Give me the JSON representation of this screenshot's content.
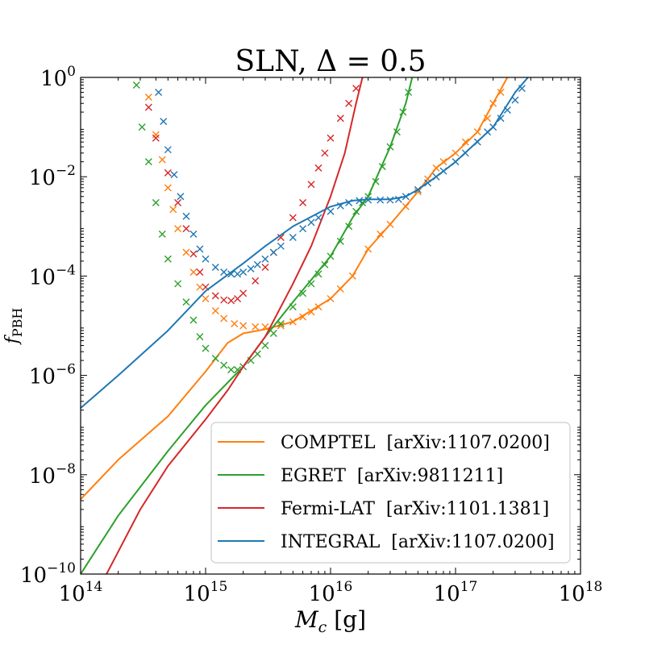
{
  "chart_data": {
    "type": "line",
    "title_text": "SLN, ",
    "title_math": "Δ = 0.5",
    "xlabel_main": "M",
    "xlabel_sub": "c",
    "xlabel_unit": " [g]",
    "ylabel_main": "f",
    "ylabel_sub": "PBH",
    "xscale": "log",
    "yscale": "log",
    "xlim": [
      100000000000000.0,
      1e+18
    ],
    "ylim": [
      1e-10,
      1
    ],
    "xticks": [
      {
        "base": "10",
        "exp": "14",
        "value": 100000000000000.0
      },
      {
        "base": "10",
        "exp": "15",
        "value": 1000000000000000.0
      },
      {
        "base": "10",
        "exp": "16",
        "value": 1e+16
      },
      {
        "base": "10",
        "exp": "17",
        "value": 1e+17
      },
      {
        "base": "10",
        "exp": "18",
        "value": 1e+18
      }
    ],
    "yticks": [
      {
        "base": "10",
        "exp": "0",
        "value": 1
      },
      {
        "base": "10",
        "exp": "−2",
        "value": 0.01
      },
      {
        "base": "10",
        "exp": "−4",
        "value": 0.0001
      },
      {
        "base": "10",
        "exp": "−6",
        "value": 1e-06
      },
      {
        "base": "10",
        "exp": "−8",
        "value": 1e-08
      },
      {
        "base": "10",
        "exp": "−10",
        "value": 1e-10
      }
    ],
    "legend_position": "lower-right",
    "series": [
      {
        "name": "COMPTEL  [arXiv:1107.0200]",
        "color": "#ff7f0e",
        "line": [
          [
            100000000000000.0,
            3.2e-09
          ],
          [
            200000000000000.0,
            2e-08
          ],
          [
            500000000000000.0,
            1.5e-07
          ],
          [
            1000000000000000.0,
            1.2e-06
          ],
          [
            1500000000000000.0,
            4.5e-06
          ],
          [
            2000000000000000.0,
            7e-06
          ],
          [
            3000000000000000.0,
            8.5e-06
          ],
          [
            5000000000000000.0,
            1.2e-05
          ],
          [
            1e+16,
            3.5e-05
          ],
          [
            1.5e+16,
            0.0001
          ],
          [
            2e+16,
            0.00035
          ],
          [
            3e+16,
            0.0011
          ],
          [
            5e+16,
            0.005
          ],
          [
            7e+16,
            0.015
          ],
          [
            1e+17,
            0.03
          ],
          [
            1.5e+17,
            0.08
          ],
          [
            2e+17,
            0.3
          ],
          [
            2.6e+17,
            1
          ]
        ],
        "markers": [
          [
            350000000000000.0,
            0.4
          ],
          [
            400000000000000.0,
            0.07
          ],
          [
            450000000000000.0,
            0.022
          ],
          [
            500000000000000.0,
            0.006
          ],
          [
            550000000000000.0,
            0.0022
          ],
          [
            600000000000000.0,
            0.0009
          ],
          [
            700000000000000.0,
            0.0003
          ],
          [
            800000000000000.0,
            0.00012
          ],
          [
            900000000000000.0,
            6e-05
          ],
          [
            1000000000000000.0,
            3.5e-05
          ],
          [
            1200000000000000.0,
            2e-05
          ],
          [
            1400000000000000.0,
            1.4e-05
          ],
          [
            1700000000000000.0,
            1.1e-05
          ],
          [
            2000000000000000.0,
            1e-05
          ],
          [
            2500000000000000.0,
            9.5e-06
          ],
          [
            3000000000000000.0,
            9.5e-06
          ],
          [
            4000000000000000.0,
            1e-05
          ],
          [
            5000000000000000.0,
            1.2e-05
          ],
          [
            6000000000000000.0,
            1.5e-05
          ],
          [
            7000000000000000.0,
            1.9e-05
          ],
          [
            8000000000000000.0,
            2.4e-05
          ],
          [
            1e+16,
            3.5e-05
          ],
          [
            1.2e+16,
            5.5e-05
          ],
          [
            1.5e+16,
            0.0001
          ],
          [
            2e+16,
            0.00035
          ],
          [
            2.5e+16,
            0.0007
          ],
          [
            3e+16,
            0.0011
          ],
          [
            4e+16,
            0.0025
          ],
          [
            5e+16,
            0.005
          ],
          [
            6e+16,
            0.009
          ],
          [
            7e+16,
            0.015
          ],
          [
            8e+16,
            0.02
          ],
          [
            1e+17,
            0.03
          ],
          [
            1.2e+17,
            0.05
          ],
          [
            1.5e+17,
            0.08
          ],
          [
            1.8e+17,
            0.15
          ],
          [
            2e+17,
            0.3
          ],
          [
            2.3e+17,
            0.5
          ]
        ]
      },
      {
        "name": "EGRET  [arXiv:9811211]",
        "color": "#2ca02c",
        "line": [
          [
            100000000000000.0,
            1e-10
          ],
          [
            200000000000000.0,
            1.5e-09
          ],
          [
            500000000000000.0,
            3e-08
          ],
          [
            1000000000000000.0,
            2.5e-07
          ],
          [
            2000000000000000.0,
            1.5e-06
          ],
          [
            3000000000000000.0,
            6e-06
          ],
          [
            5000000000000000.0,
            3e-05
          ],
          [
            1e+16,
            0.00025
          ],
          [
            1.5e+16,
            0.0015
          ],
          [
            2e+16,
            0.004
          ],
          [
            3e+16,
            0.04
          ],
          [
            4e+16,
            0.3
          ],
          [
            4.5e+16,
            1
          ]
        ],
        "markers": [
          [
            280000000000000.0,
            0.7
          ],
          [
            310000000000000.0,
            0.1
          ],
          [
            350000000000000.0,
            0.02
          ],
          [
            400000000000000.0,
            0.003
          ],
          [
            450000000000000.0,
            0.0007
          ],
          [
            500000000000000.0,
            0.00022
          ],
          [
            600000000000000.0,
            7e-05
          ],
          [
            700000000000000.0,
            3e-05
          ],
          [
            800000000000000.0,
            1.3e-05
          ],
          [
            900000000000000.0,
            6e-06
          ],
          [
            1000000000000000.0,
            3.5e-06
          ],
          [
            1200000000000000.0,
            2.2e-06
          ],
          [
            1400000000000000.0,
            1.6e-06
          ],
          [
            1600000000000000.0,
            1.3e-06
          ],
          [
            1800000000000000.0,
            1.3e-06
          ],
          [
            2000000000000000.0,
            1.5e-06
          ],
          [
            2300000000000000.0,
            2e-06
          ],
          [
            2600000000000000.0,
            2.7e-06
          ],
          [
            3000000000000000.0,
            4e-06
          ],
          [
            3500000000000000.0,
            7e-06
          ],
          [
            4000000000000000.0,
            1.1e-05
          ],
          [
            5000000000000000.0,
            2.4e-05
          ],
          [
            6000000000000000.0,
            4.5e-05
          ],
          [
            7000000000000000.0,
            7e-05
          ],
          [
            8000000000000000.0,
            0.00011
          ],
          [
            9000000000000000.0,
            0.00017
          ],
          [
            1e+16,
            0.00025
          ],
          [
            1.2e+16,
            0.0005
          ],
          [
            1.4e+16,
            0.001
          ],
          [
            1.6e+16,
            0.002
          ],
          [
            1.8e+16,
            0.003
          ],
          [
            2e+16,
            0.004
          ],
          [
            2.3e+16,
            0.008
          ],
          [
            2.6e+16,
            0.016
          ],
          [
            3e+16,
            0.04
          ],
          [
            3.4e+16,
            0.08
          ],
          [
            3.8e+16,
            0.2
          ],
          [
            4.2e+16,
            0.5
          ]
        ]
      },
      {
        "name": "Fermi-LAT  [arXiv:1101.1381]",
        "color": "#d62728",
        "line": [
          [
            100000000000000.0,
            1e-11
          ],
          [
            300000000000000.0,
            2e-09
          ],
          [
            500000000000000.0,
            1.5e-08
          ],
          [
            1000000000000000.0,
            1.3e-07
          ],
          [
            1500000000000000.0,
            5e-07
          ],
          [
            2000000000000000.0,
            1.5e-06
          ],
          [
            3000000000000000.0,
            6e-06
          ],
          [
            5000000000000000.0,
            7e-05
          ],
          [
            7000000000000000.0,
            0.0004
          ],
          [
            1e+16,
            0.004
          ],
          [
            1.3e+16,
            0.03
          ],
          [
            1.6e+16,
            0.3
          ],
          [
            1.8e+16,
            1
          ]
        ],
        "markers": [
          [
            350000000000000.0,
            0.25
          ],
          [
            400000000000000.0,
            0.06
          ],
          [
            500000000000000.0,
            0.012
          ],
          [
            600000000000000.0,
            0.003
          ],
          [
            700000000000000.0,
            0.0009
          ],
          [
            800000000000000.0,
            0.00028
          ],
          [
            900000000000000.0,
            0.00012
          ],
          [
            1000000000000000.0,
            6e-05
          ],
          [
            1200000000000000.0,
            4e-05
          ],
          [
            1400000000000000.0,
            3.3e-05
          ],
          [
            1600000000000000.0,
            3.2e-05
          ],
          [
            1800000000000000.0,
            3.5e-05
          ],
          [
            2000000000000000.0,
            4.5e-05
          ],
          [
            2500000000000000.0,
            8e-05
          ],
          [
            3000000000000000.0,
            0.00015
          ],
          [
            3500000000000000.0,
            0.0003
          ],
          [
            4000000000000000.0,
            0.0006
          ],
          [
            5000000000000000.0,
            0.0015
          ],
          [
            6000000000000000.0,
            0.003
          ],
          [
            7000000000000000.0,
            0.007
          ],
          [
            8000000000000000.0,
            0.015
          ],
          [
            9000000000000000.0,
            0.03
          ],
          [
            1e+16,
            0.06
          ],
          [
            1.2e+16,
            0.15
          ],
          [
            1.4e+16,
            0.3
          ],
          [
            1.6e+16,
            0.6
          ]
        ]
      },
      {
        "name": "INTEGRAL  [arXiv:1107.0200]",
        "color": "#1f77b4",
        "line": [
          [
            100000000000000.0,
            2.2e-07
          ],
          [
            200000000000000.0,
            1e-06
          ],
          [
            500000000000000.0,
            8e-06
          ],
          [
            1000000000000000.0,
            5e-05
          ],
          [
            2000000000000000.0,
            0.00018
          ],
          [
            3000000000000000.0,
            0.0004
          ],
          [
            5000000000000000.0,
            0.001
          ],
          [
            1e+16,
            0.0025
          ],
          [
            1.5e+16,
            0.0033
          ],
          [
            2e+16,
            0.0035
          ],
          [
            3e+16,
            0.0035
          ],
          [
            4e+16,
            0.004
          ],
          [
            5e+16,
            0.0055
          ],
          [
            7e+16,
            0.01
          ],
          [
            1e+17,
            0.02
          ],
          [
            2e+17,
            0.1
          ],
          [
            3e+17,
            0.5
          ],
          [
            3.8e+17,
            1
          ]
        ],
        "markers": [
          [
            420000000000000.0,
            0.5
          ],
          [
            460000000000000.0,
            0.13
          ],
          [
            500000000000000.0,
            0.035
          ],
          [
            560000000000000.0,
            0.011
          ],
          [
            630000000000000.0,
            0.004
          ],
          [
            700000000000000.0,
            0.0016
          ],
          [
            800000000000000.0,
            0.0007
          ],
          [
            900000000000000.0,
            0.00035
          ],
          [
            1000000000000000.0,
            0.00022
          ],
          [
            1200000000000000.0,
            0.00015
          ],
          [
            1400000000000000.0,
            0.00012
          ],
          [
            1600000000000000.0,
            0.00011
          ],
          [
            1800000000000000.0,
            0.00011
          ],
          [
            2000000000000000.0,
            0.00012
          ],
          [
            2300000000000000.0,
            0.00014
          ],
          [
            2600000000000000.0,
            0.00017
          ],
          [
            3000000000000000.0,
            0.00022
          ],
          [
            3500000000000000.0,
            0.0003
          ],
          [
            4000000000000000.0,
            0.0004
          ],
          [
            5000000000000000.0,
            0.0006
          ],
          [
            6000000000000000.0,
            0.0009
          ],
          [
            7000000000000000.0,
            0.0012
          ],
          [
            8000000000000000.0,
            0.0015
          ],
          [
            1e+16,
            0.002
          ],
          [
            1.2e+16,
            0.0026
          ],
          [
            1.4e+16,
            0.003
          ],
          [
            1.7e+16,
            0.0033
          ],
          [
            2e+16,
            0.0034
          ],
          [
            2.5e+16,
            0.0034
          ],
          [
            3e+16,
            0.0034
          ],
          [
            3.5e+16,
            0.0035
          ],
          [
            4e+16,
            0.004
          ],
          [
            5e+16,
            0.0055
          ],
          [
            6e+16,
            0.0075
          ],
          [
            7e+16,
            0.01
          ],
          [
            8e+16,
            0.013
          ],
          [
            1e+17,
            0.02
          ],
          [
            1.2e+17,
            0.03
          ],
          [
            1.5e+17,
            0.05
          ],
          [
            1.8e+17,
            0.08
          ],
          [
            2e+17,
            0.1
          ],
          [
            2.3e+17,
            0.15
          ],
          [
            2.6e+17,
            0.22
          ],
          [
            3e+17,
            0.35
          ],
          [
            3.4e+17,
            0.6
          ]
        ]
      }
    ]
  }
}
